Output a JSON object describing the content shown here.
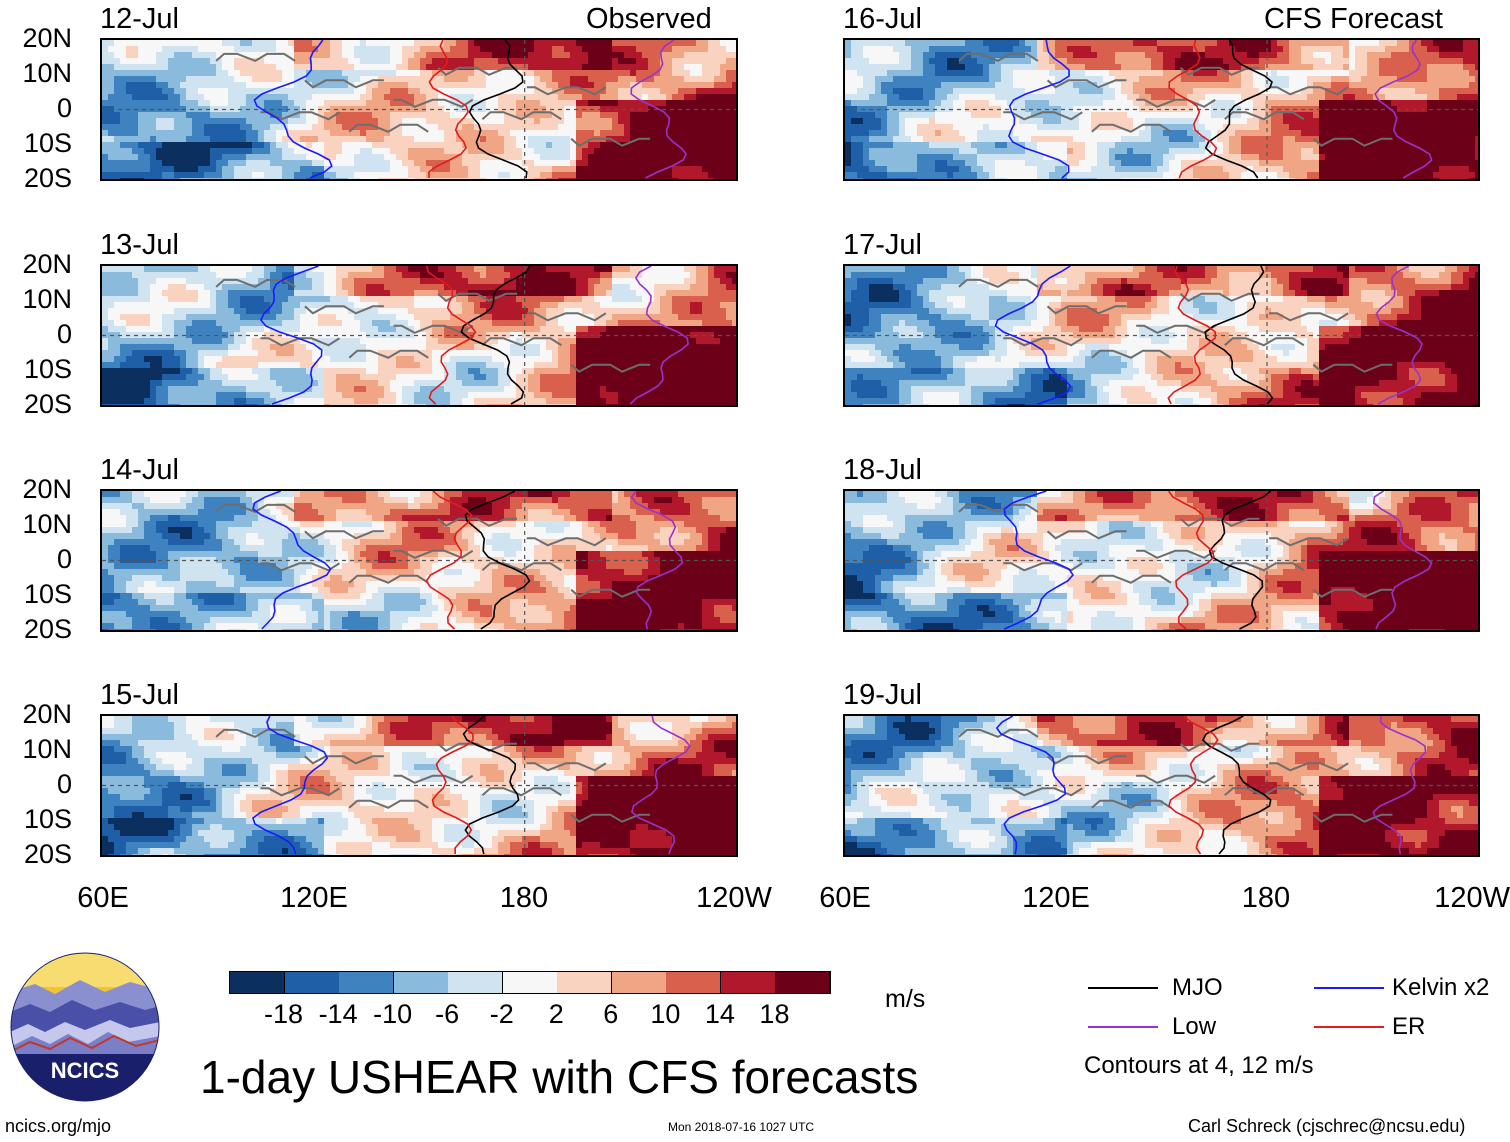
{
  "headers": {
    "left": "Observed",
    "right": "CFS Forecast"
  },
  "panels": {
    "left": [
      {
        "date": "12-Jul"
      },
      {
        "date": "13-Jul"
      },
      {
        "date": "14-Jul"
      },
      {
        "date": "15-Jul"
      }
    ],
    "right": [
      {
        "date": "16-Jul"
      },
      {
        "date": "17-Jul"
      },
      {
        "date": "18-Jul"
      },
      {
        "date": "19-Jul"
      }
    ]
  },
  "y_ticks": [
    "20N",
    "10N",
    "0",
    "10S",
    "20S"
  ],
  "x_ticks": [
    "60E",
    "120E",
    "180",
    "120W"
  ],
  "colorbar": {
    "labels": [
      "-18",
      "-14",
      "-10",
      "-6",
      "-2",
      "2",
      "6",
      "10",
      "14",
      "18"
    ],
    "colors": [
      "#0b2f5e",
      "#1f5fa8",
      "#3e82c0",
      "#8bbbdc",
      "#cfe3f0",
      "#f7f7f7",
      "#f9d3c0",
      "#f0a584",
      "#d9604c",
      "#b2182b",
      "#6b0018"
    ],
    "unit": "m/s"
  },
  "legend": {
    "items": [
      {
        "label": "MJO",
        "color": "#000000"
      },
      {
        "label": "Kelvin x2",
        "color": "#1a1aff"
      },
      {
        "label": "Low",
        "color": "#9932cc"
      },
      {
        "label": "ER",
        "color": "#e31a1c"
      }
    ],
    "note": "Contours at 4, 12 m/s"
  },
  "title": "1-day USHEAR with CFS forecasts",
  "logo_text": "NCICS",
  "footer": {
    "left": "ncics.org/mjo",
    "center": "Mon 2018-07-16 1027 UTC",
    "right": "Carl Schreck (cjschrec@ncsu.edu)"
  }
}
